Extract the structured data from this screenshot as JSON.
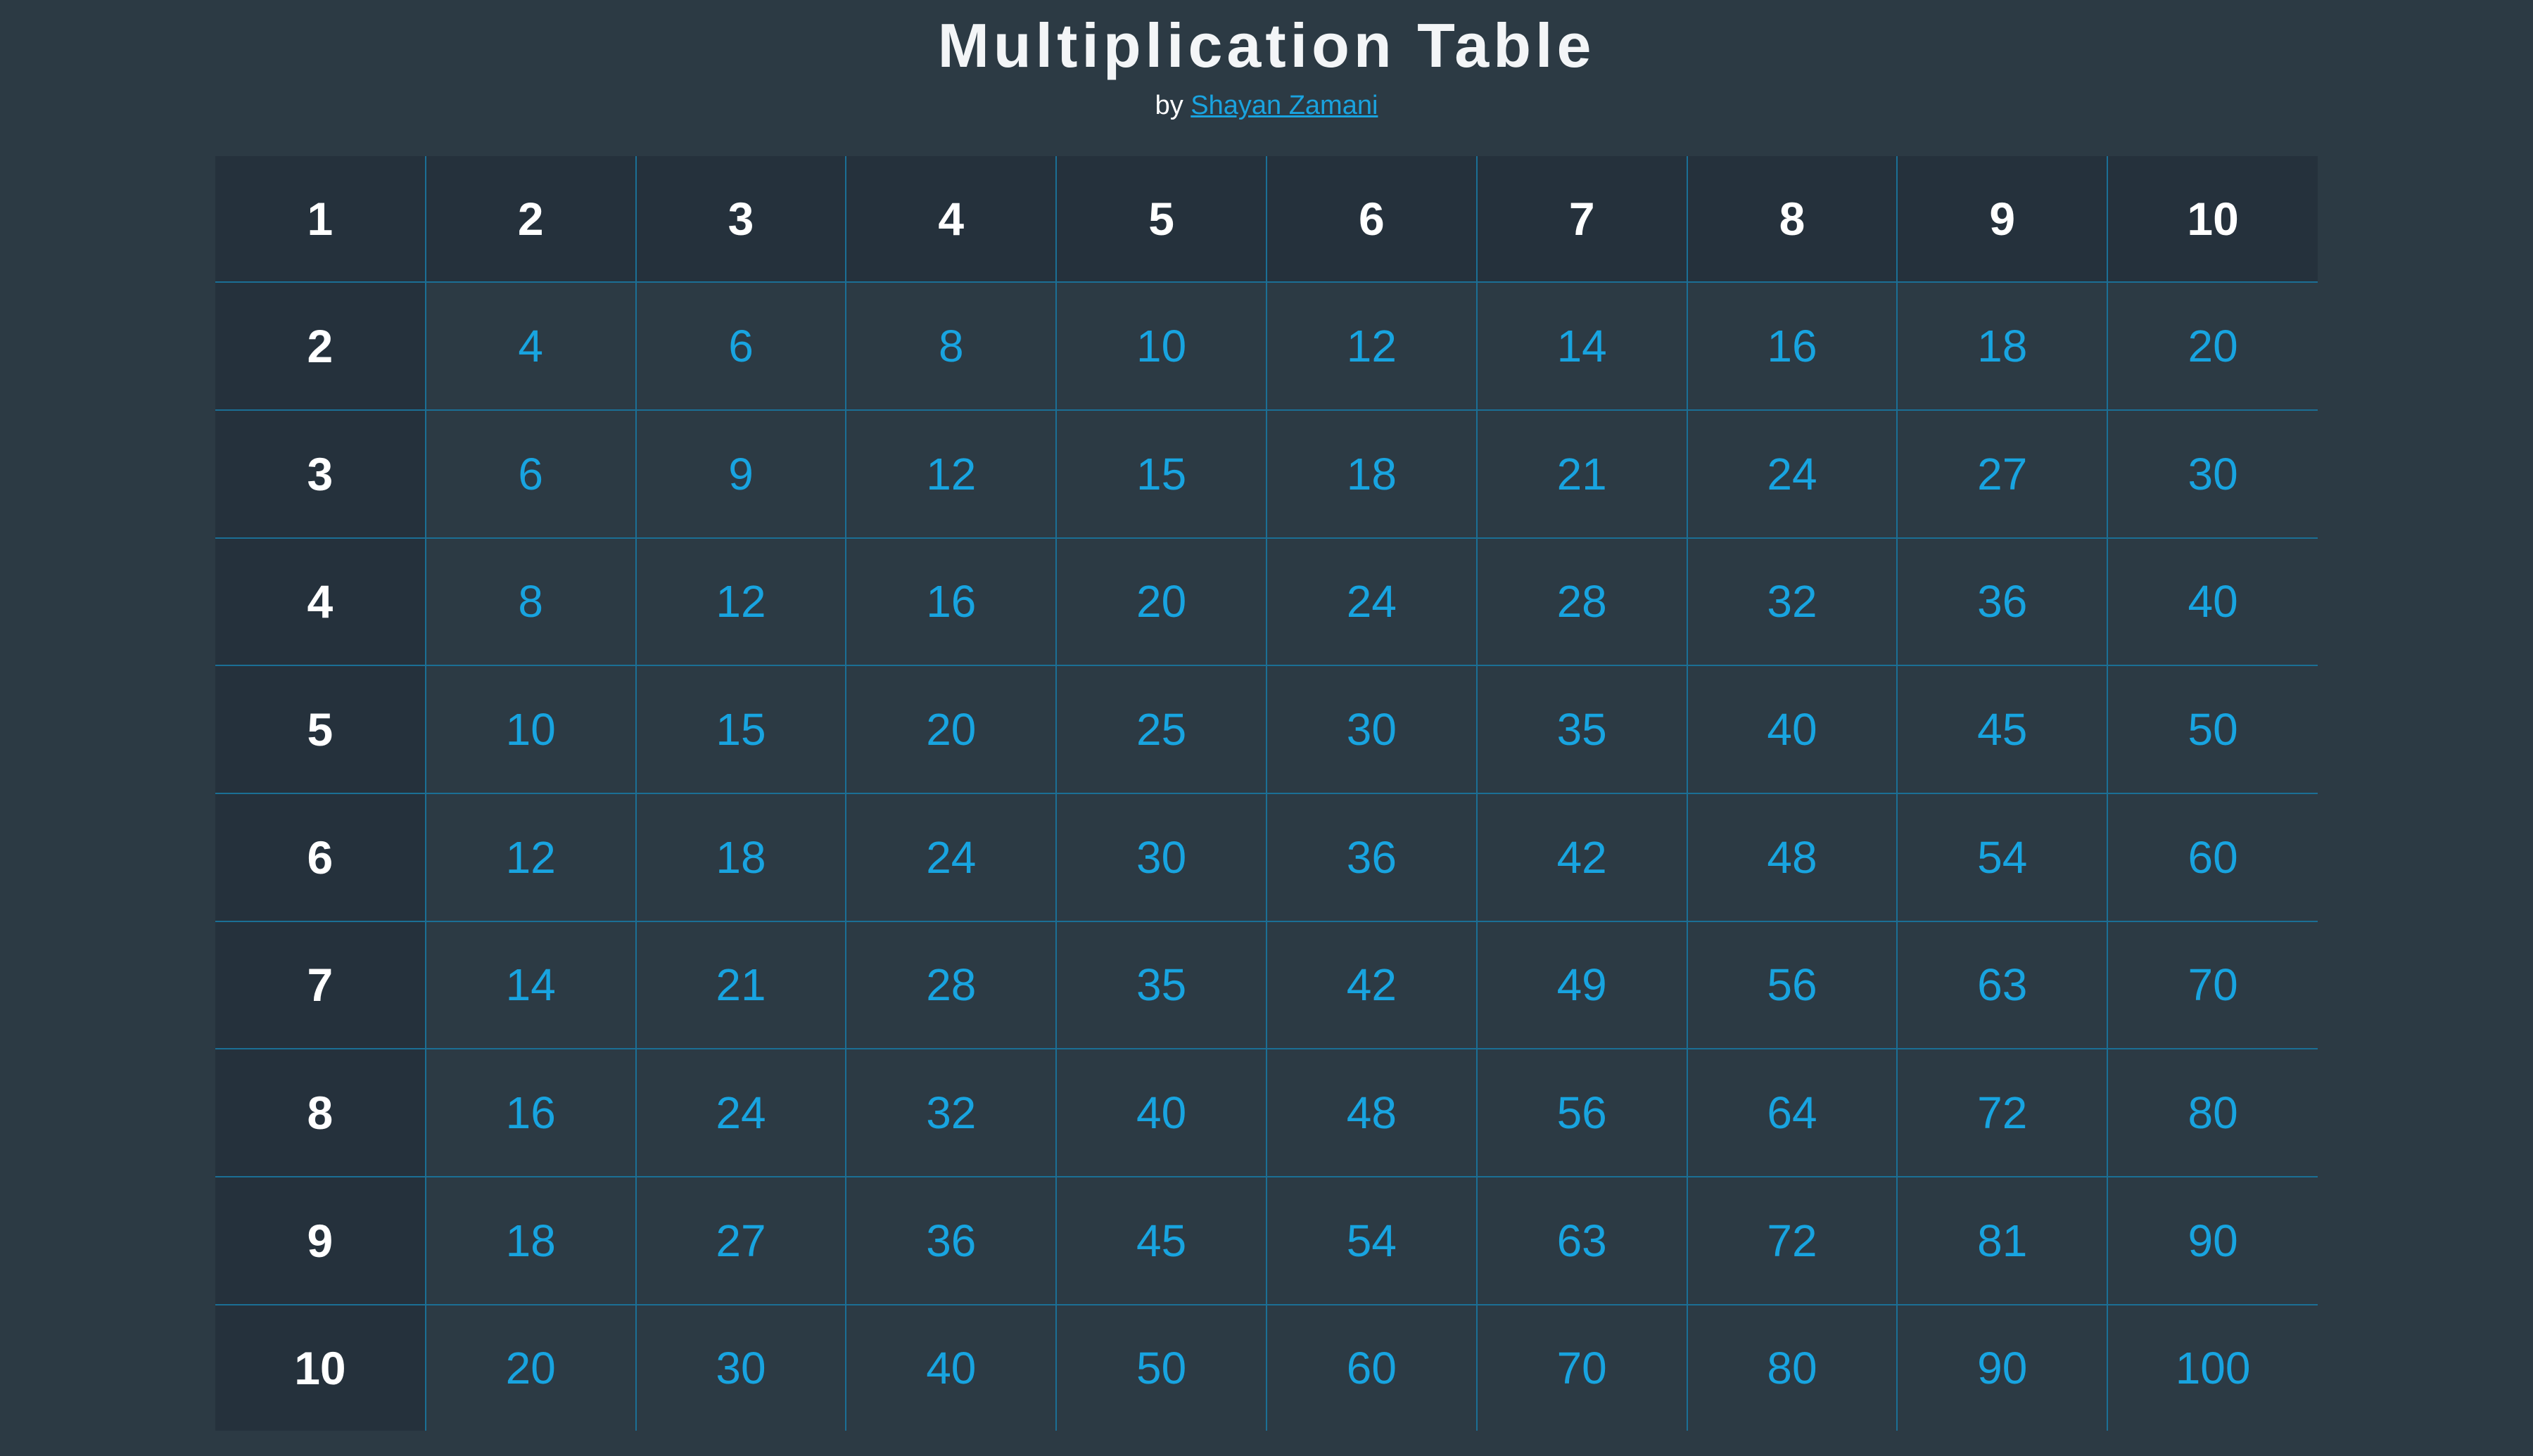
{
  "header": {
    "title": "Multiplication Table",
    "byline_prefix": "by",
    "author": "Shayan Zamani"
  },
  "colors": {
    "background": "#2c3a44",
    "header_cell": "#25313c",
    "value_text": "#18a4e0",
    "grid_line": "#1b6f95",
    "header_text": "#ffffff"
  },
  "table": {
    "rows": [
      [
        "1",
        "2",
        "3",
        "4",
        "5",
        "6",
        "7",
        "8",
        "9",
        "10"
      ],
      [
        "2",
        "4",
        "6",
        "8",
        "10",
        "12",
        "14",
        "16",
        "18",
        "20"
      ],
      [
        "3",
        "6",
        "9",
        "12",
        "15",
        "18",
        "21",
        "24",
        "27",
        "30"
      ],
      [
        "4",
        "8",
        "12",
        "16",
        "20",
        "24",
        "28",
        "32",
        "36",
        "40"
      ],
      [
        "5",
        "10",
        "15",
        "20",
        "25",
        "30",
        "35",
        "40",
        "45",
        "50"
      ],
      [
        "6",
        "12",
        "18",
        "24",
        "30",
        "36",
        "42",
        "48",
        "54",
        "60"
      ],
      [
        "7",
        "14",
        "21",
        "28",
        "35",
        "42",
        "49",
        "56",
        "63",
        "70"
      ],
      [
        "8",
        "16",
        "24",
        "32",
        "40",
        "48",
        "56",
        "64",
        "72",
        "80"
      ],
      [
        "9",
        "18",
        "27",
        "36",
        "45",
        "54",
        "63",
        "72",
        "81",
        "90"
      ],
      [
        "10",
        "20",
        "30",
        "40",
        "50",
        "60",
        "70",
        "80",
        "90",
        "100"
      ]
    ]
  }
}
